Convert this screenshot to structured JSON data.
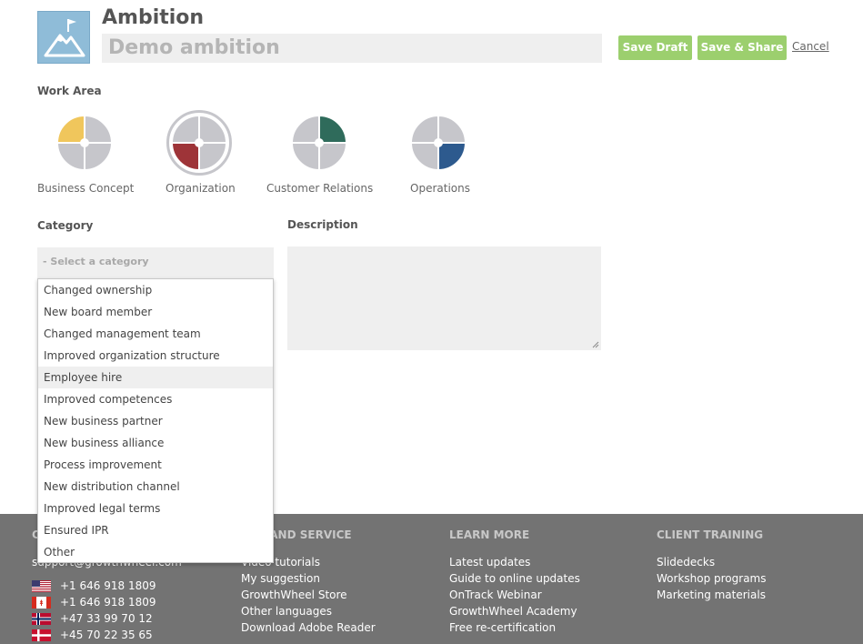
{
  "header": {
    "title": "Ambition",
    "name_value": "Demo ambition",
    "save_draft": "Save Draft",
    "save_share": "Save & Share",
    "cancel": "Cancel"
  },
  "work_area": {
    "label": "Work Area",
    "selected": "Organization",
    "items": [
      {
        "label": "Business Concept",
        "color": "#f0c65c"
      },
      {
        "label": "Organization",
        "color": "#9e3438"
      },
      {
        "label": "Customer Relations",
        "color": "#2f6b5b"
      },
      {
        "label": "Operations",
        "color": "#2d5a8e"
      }
    ]
  },
  "category": {
    "label": "Category",
    "placeholder": "- Select a category",
    "highlighted": "Employee hire",
    "options": [
      "Changed ownership",
      "New board member",
      "Changed management team",
      "Improved organization structure",
      "Employee hire",
      "Improved competences",
      "New business partner",
      "New business alliance",
      "Process improvement",
      "New distribution channel",
      "Improved legal terms",
      "Ensured IPR",
      "Other"
    ]
  },
  "description": {
    "label": "Description",
    "value": ""
  },
  "footer": {
    "contact_fragment": "C",
    "email_fragment": "support@growthwheel.com",
    "phones": [
      {
        "flag": "us-flag-icon",
        "number": "+1 646 918 1809"
      },
      {
        "flag": "canada-flag-icon",
        "number": "+1 646 918 1809"
      },
      {
        "flag": "norway-flag-icon",
        "number": "+47 33 99 70 12"
      },
      {
        "flag": "denmark-flag-icon",
        "number": "+45 70 22 35 65"
      }
    ],
    "support_heading_fragment": "ORT AND SERVICE",
    "support_items": [
      "Video tutorials",
      "My suggestion",
      "GrowthWheel Store",
      "Other languages",
      "Download Adobe Reader"
    ],
    "learn_heading": "LEARN MORE",
    "learn_items": [
      "Latest updates",
      "Guide to online updates",
      "OnTrack Webinar",
      "GrowthWheel Academy",
      "Free re-certification"
    ],
    "training_heading": "CLIENT TRAINING",
    "training_items": [
      "Slidedecks",
      "Workshop programs",
      "Marketing materials"
    ]
  },
  "colors": {
    "button_green": "#9ccf6e",
    "footer_bg": "#737373",
    "input_bg": "#efefef",
    "wheel_gray": "#c6c6cb"
  }
}
